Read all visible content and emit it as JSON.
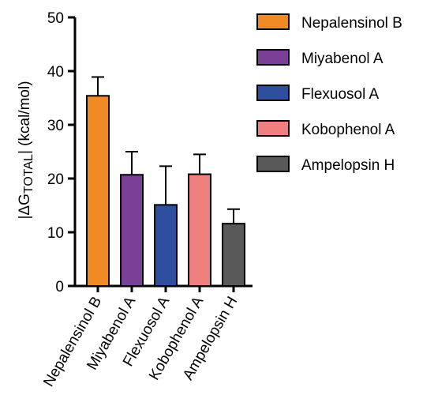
{
  "chart_data": {
    "type": "bar",
    "categories": [
      "Nepalensinol B",
      "Miyabenol A",
      "Flexuosol A",
      "Kobophenol A",
      "Ampelopsin H"
    ],
    "values": [
      35.4,
      20.7,
      15.1,
      20.8,
      11.6
    ],
    "errors": [
      3.5,
      4.3,
      7.2,
      3.7,
      2.7
    ],
    "colors": [
      "#f08a24",
      "#7a3f96",
      "#2e4f9f",
      "#f08080",
      "#595959"
    ],
    "ylabel": {
      "prefix": "|ΔG",
      "sub": "TOTAL",
      "suffix": "| (kcal/mol)"
    },
    "ylim": [
      0,
      50
    ],
    "yticks": [
      "0",
      "10",
      "20",
      "30",
      "40",
      "50"
    ],
    "grid": false,
    "legend": {
      "placement": "right",
      "entries": [
        "Nepalensinol B",
        "Miyabenol A",
        "Flexuosol A",
        "Kobophenol A",
        "Ampelopsin H"
      ]
    }
  }
}
